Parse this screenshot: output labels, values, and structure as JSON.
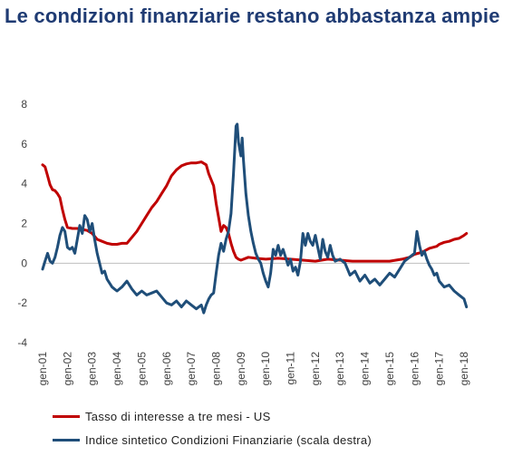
{
  "title": "Le condizioni finanziarie restano abbastanza ampie",
  "chart_data": {
    "type": "line",
    "title": "Le condizioni finanziarie restano abbastanza ampie",
    "ylim": [
      -4,
      8
    ],
    "yticks": [
      "8",
      "6",
      "4",
      "2",
      "0",
      "-2",
      "-4"
    ],
    "categories": [
      "gen-01",
      "gen-02",
      "gen-03",
      "gen-04",
      "gen-05",
      "gen-06",
      "gen-07",
      "gen-08",
      "gen-09",
      "gen-10",
      "gen-11",
      "gen-12",
      "gen-13",
      "gen-14",
      "gen-15",
      "gen-16",
      "gen-17",
      "gen-18"
    ],
    "grid": false,
    "legend_position": "bottom",
    "series": [
      {
        "name": "Tasso di interesse a tre mesi - US",
        "color": "#c00000",
        "points": [
          [
            2001.0,
            4.95
          ],
          [
            2001.1,
            4.85
          ],
          [
            2001.2,
            4.4
          ],
          [
            2001.3,
            3.95
          ],
          [
            2001.4,
            3.7
          ],
          [
            2001.5,
            3.65
          ],
          [
            2001.6,
            3.5
          ],
          [
            2001.7,
            3.3
          ],
          [
            2001.8,
            2.7
          ],
          [
            2001.9,
            2.2
          ],
          [
            2002.0,
            1.8
          ],
          [
            2002.2,
            1.75
          ],
          [
            2002.4,
            1.75
          ],
          [
            2002.6,
            1.7
          ],
          [
            2002.8,
            1.65
          ],
          [
            2003.0,
            1.5
          ],
          [
            2003.2,
            1.2
          ],
          [
            2003.4,
            1.1
          ],
          [
            2003.6,
            1.0
          ],
          [
            2003.8,
            0.95
          ],
          [
            2004.0,
            0.95
          ],
          [
            2004.2,
            1.0
          ],
          [
            2004.4,
            1.0
          ],
          [
            2004.6,
            1.3
          ],
          [
            2004.8,
            1.6
          ],
          [
            2005.0,
            2.0
          ],
          [
            2005.2,
            2.4
          ],
          [
            2005.4,
            2.8
          ],
          [
            2005.6,
            3.1
          ],
          [
            2005.8,
            3.5
          ],
          [
            2006.0,
            3.9
          ],
          [
            2006.2,
            4.4
          ],
          [
            2006.4,
            4.7
          ],
          [
            2006.6,
            4.9
          ],
          [
            2006.8,
            5.0
          ],
          [
            2007.0,
            5.05
          ],
          [
            2007.2,
            5.05
          ],
          [
            2007.4,
            5.1
          ],
          [
            2007.6,
            4.95
          ],
          [
            2007.7,
            4.5
          ],
          [
            2007.8,
            4.2
          ],
          [
            2007.9,
            3.9
          ],
          [
            2008.0,
            3.0
          ],
          [
            2008.1,
            2.3
          ],
          [
            2008.2,
            1.6
          ],
          [
            2008.3,
            1.9
          ],
          [
            2008.4,
            1.8
          ],
          [
            2008.5,
            1.5
          ],
          [
            2008.6,
            1.0
          ],
          [
            2008.7,
            0.6
          ],
          [
            2008.8,
            0.3
          ],
          [
            2008.9,
            0.2
          ],
          [
            2009.0,
            0.15
          ],
          [
            2009.3,
            0.3
          ],
          [
            2009.6,
            0.25
          ],
          [
            2010.0,
            0.2
          ],
          [
            2010.5,
            0.25
          ],
          [
            2011.0,
            0.2
          ],
          [
            2011.5,
            0.15
          ],
          [
            2012.0,
            0.1
          ],
          [
            2012.5,
            0.2
          ],
          [
            2013.0,
            0.15
          ],
          [
            2013.5,
            0.1
          ],
          [
            2014.0,
            0.1
          ],
          [
            2014.5,
            0.1
          ],
          [
            2015.0,
            0.1
          ],
          [
            2015.5,
            0.2
          ],
          [
            2015.8,
            0.3
          ],
          [
            2016.0,
            0.45
          ],
          [
            2016.3,
            0.55
          ],
          [
            2016.6,
            0.75
          ],
          [
            2016.9,
            0.85
          ],
          [
            2017.0,
            0.95
          ],
          [
            2017.2,
            1.05
          ],
          [
            2017.4,
            1.1
          ],
          [
            2017.6,
            1.2
          ],
          [
            2017.8,
            1.25
          ],
          [
            2018.0,
            1.4
          ],
          [
            2018.1,
            1.5
          ]
        ]
      },
      {
        "name": "Indice sintetico Condizioni Finanziarie (scala destra)",
        "color": "#1f4e79",
        "points": [
          [
            2001.0,
            -0.3
          ],
          [
            2001.1,
            0.1
          ],
          [
            2001.2,
            0.5
          ],
          [
            2001.3,
            0.1
          ],
          [
            2001.4,
            0.0
          ],
          [
            2001.5,
            0.3
          ],
          [
            2001.6,
            0.8
          ],
          [
            2001.7,
            1.4
          ],
          [
            2001.8,
            1.8
          ],
          [
            2001.9,
            1.6
          ],
          [
            2002.0,
            0.8
          ],
          [
            2002.1,
            0.7
          ],
          [
            2002.2,
            0.8
          ],
          [
            2002.3,
            0.5
          ],
          [
            2002.4,
            1.2
          ],
          [
            2002.5,
            1.9
          ],
          [
            2002.6,
            1.5
          ],
          [
            2002.7,
            2.4
          ],
          [
            2002.8,
            2.2
          ],
          [
            2002.9,
            1.6
          ],
          [
            2003.0,
            2.0
          ],
          [
            2003.1,
            1.2
          ],
          [
            2003.2,
            0.5
          ],
          [
            2003.3,
            0.0
          ],
          [
            2003.4,
            -0.5
          ],
          [
            2003.5,
            -0.4
          ],
          [
            2003.6,
            -0.8
          ],
          [
            2003.7,
            -1.0
          ],
          [
            2003.8,
            -1.2
          ],
          [
            2003.9,
            -1.3
          ],
          [
            2004.0,
            -1.4
          ],
          [
            2004.2,
            -1.2
          ],
          [
            2004.4,
            -0.9
          ],
          [
            2004.6,
            -1.3
          ],
          [
            2004.8,
            -1.6
          ],
          [
            2005.0,
            -1.4
          ],
          [
            2005.2,
            -1.6
          ],
          [
            2005.4,
            -1.5
          ],
          [
            2005.6,
            -1.4
          ],
          [
            2005.8,
            -1.7
          ],
          [
            2006.0,
            -2.0
          ],
          [
            2006.2,
            -2.1
          ],
          [
            2006.4,
            -1.9
          ],
          [
            2006.6,
            -2.2
          ],
          [
            2006.8,
            -1.9
          ],
          [
            2007.0,
            -2.1
          ],
          [
            2007.2,
            -2.3
          ],
          [
            2007.4,
            -2.1
          ],
          [
            2007.5,
            -2.5
          ],
          [
            2007.6,
            -2.1
          ],
          [
            2007.7,
            -1.8
          ],
          [
            2007.8,
            -1.6
          ],
          [
            2007.9,
            -1.5
          ],
          [
            2008.0,
            -0.5
          ],
          [
            2008.1,
            0.4
          ],
          [
            2008.2,
            1.0
          ],
          [
            2008.3,
            0.6
          ],
          [
            2008.4,
            1.2
          ],
          [
            2008.5,
            1.6
          ],
          [
            2008.6,
            2.5
          ],
          [
            2008.7,
            4.5
          ],
          [
            2008.8,
            6.9
          ],
          [
            2008.85,
            7.0
          ],
          [
            2008.9,
            6.1
          ],
          [
            2009.0,
            5.4
          ],
          [
            2009.05,
            6.3
          ],
          [
            2009.1,
            5.2
          ],
          [
            2009.2,
            3.5
          ],
          [
            2009.3,
            2.4
          ],
          [
            2009.4,
            1.6
          ],
          [
            2009.5,
            1.0
          ],
          [
            2009.6,
            0.5
          ],
          [
            2009.7,
            0.2
          ],
          [
            2009.8,
            0.0
          ],
          [
            2009.9,
            -0.5
          ],
          [
            2010.0,
            -0.9
          ],
          [
            2010.1,
            -1.2
          ],
          [
            2010.2,
            -0.5
          ],
          [
            2010.3,
            0.7
          ],
          [
            2010.4,
            0.4
          ],
          [
            2010.5,
            0.9
          ],
          [
            2010.6,
            0.4
          ],
          [
            2010.7,
            0.7
          ],
          [
            2010.8,
            0.3
          ],
          [
            2010.9,
            -0.1
          ],
          [
            2011.0,
            0.2
          ],
          [
            2011.1,
            -0.4
          ],
          [
            2011.2,
            -0.2
          ],
          [
            2011.3,
            -0.6
          ],
          [
            2011.4,
            0.1
          ],
          [
            2011.5,
            1.5
          ],
          [
            2011.6,
            0.9
          ],
          [
            2011.7,
            1.5
          ],
          [
            2011.8,
            1.1
          ],
          [
            2011.9,
            0.9
          ],
          [
            2012.0,
            1.4
          ],
          [
            2012.1,
            0.8
          ],
          [
            2012.2,
            0.2
          ],
          [
            2012.3,
            1.2
          ],
          [
            2012.4,
            0.6
          ],
          [
            2012.5,
            0.3
          ],
          [
            2012.6,
            0.9
          ],
          [
            2012.7,
            0.4
          ],
          [
            2012.8,
            0.1
          ],
          [
            2013.0,
            0.2
          ],
          [
            2013.2,
            0.0
          ],
          [
            2013.4,
            -0.6
          ],
          [
            2013.6,
            -0.4
          ],
          [
            2013.8,
            -0.9
          ],
          [
            2014.0,
            -0.6
          ],
          [
            2014.2,
            -1.0
          ],
          [
            2014.4,
            -0.8
          ],
          [
            2014.6,
            -1.1
          ],
          [
            2014.8,
            -0.8
          ],
          [
            2015.0,
            -0.5
          ],
          [
            2015.2,
            -0.7
          ],
          [
            2015.4,
            -0.3
          ],
          [
            2015.6,
            0.1
          ],
          [
            2015.8,
            0.3
          ],
          [
            2016.0,
            0.5
          ],
          [
            2016.1,
            1.6
          ],
          [
            2016.2,
            0.9
          ],
          [
            2016.3,
            0.4
          ],
          [
            2016.4,
            0.6
          ],
          [
            2016.5,
            0.2
          ],
          [
            2016.6,
            -0.1
          ],
          [
            2016.7,
            -0.3
          ],
          [
            2016.8,
            -0.6
          ],
          [
            2016.9,
            -0.5
          ],
          [
            2017.0,
            -0.9
          ],
          [
            2017.2,
            -1.2
          ],
          [
            2017.4,
            -1.1
          ],
          [
            2017.6,
            -1.4
          ],
          [
            2017.8,
            -1.6
          ],
          [
            2018.0,
            -1.8
          ],
          [
            2018.1,
            -2.2
          ]
        ]
      }
    ]
  }
}
